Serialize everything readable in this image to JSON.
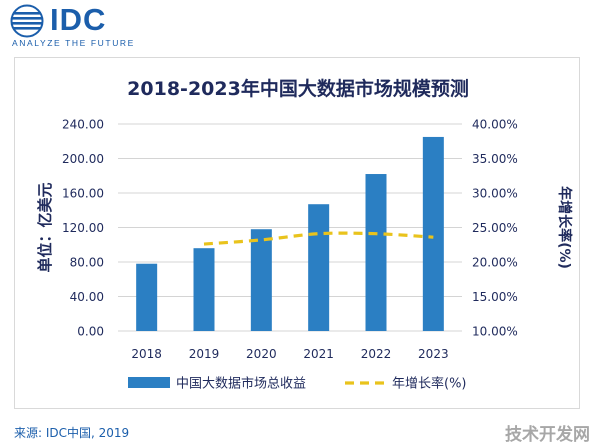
{
  "logo": {
    "brand": "IDC",
    "tagline": "ANALYZE THE FUTURE"
  },
  "chart_data": {
    "type": "bar",
    "title": "2018-2023年中国大数据市场规模预测",
    "categories": [
      "2018",
      "2019",
      "2020",
      "2021",
      "2022",
      "2023"
    ],
    "series": [
      {
        "name": "中国大数据市场总收益",
        "type": "bar",
        "axis": "left",
        "color": "#2b7fc3",
        "values": [
          78,
          96,
          118,
          147,
          182,
          225
        ]
      },
      {
        "name": "年增长率(%)",
        "type": "line",
        "style": "dashed",
        "axis": "right",
        "color": "#e9c31c",
        "x": [
          "2019",
          "2020",
          "2021",
          "2022",
          "2023"
        ],
        "values": [
          22.6,
          23.2,
          24.1,
          24.1,
          23.6
        ]
      }
    ],
    "ylabel": "单位：亿美元",
    "y2label": "年增长率(%)",
    "ylim": [
      0,
      240
    ],
    "y2lim": [
      10,
      40
    ],
    "yticks": [
      "0.00",
      "40.00",
      "80.00",
      "120.00",
      "160.00",
      "200.00",
      "240.00"
    ],
    "y2ticks": [
      "10.00%",
      "15.00%",
      "20.00%",
      "25.00%",
      "30.00%",
      "35.00%",
      "40.00%"
    ],
    "grid": true,
    "legend_position": "bottom"
  },
  "source": "来源: IDC中国, 2019",
  "watermark": "技术开发网"
}
